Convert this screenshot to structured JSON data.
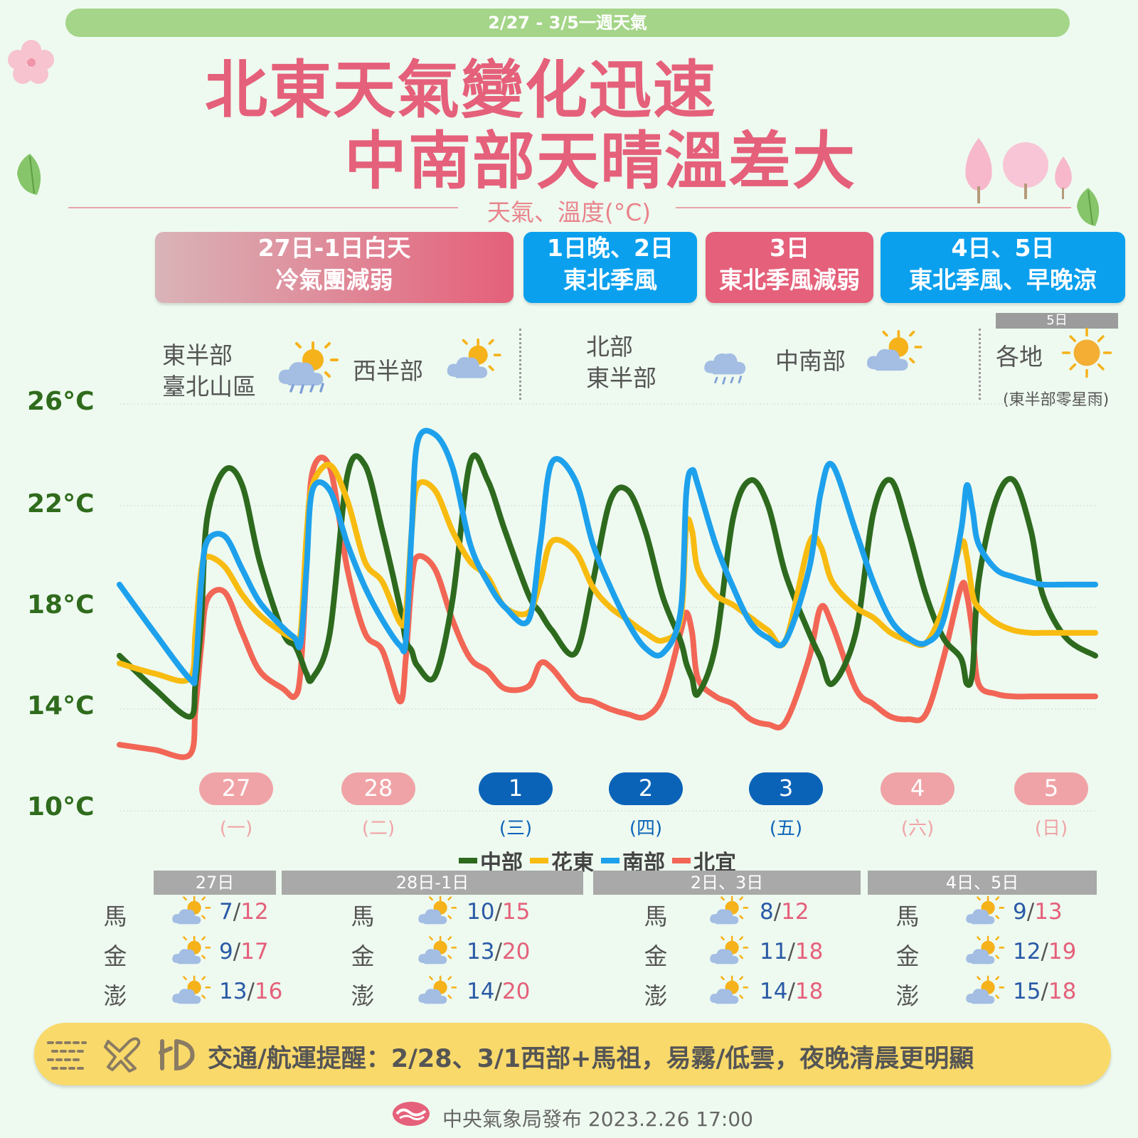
{
  "header": {
    "period_banner": "2/27 - 3/5一週天氣",
    "title_line1": "北東天氣變化迅速",
    "title_line2": "中南部天晴溫差大",
    "subtitle": "天氣、溫度(°C)"
  },
  "periods": [
    {
      "line1": "27日-1日白天",
      "line2": "冷氣團減弱"
    },
    {
      "line1": "1日晚、2日",
      "line2": "東北季風"
    },
    {
      "line1": "3日",
      "line2": "東北季風減弱"
    },
    {
      "line1": "4日、5日",
      "line2": "東北季風、早晚涼"
    }
  ],
  "weather_notes": {
    "g1_region_a_line1": "東半部",
    "g1_region_a_line2": "臺北山區",
    "g1_region_b": "西半部",
    "g2_region_a_line1": "北部",
    "g2_region_a_line2": "東半部",
    "g2_region_b": "中南部",
    "g3_tag": "5日",
    "g3_region": "各地",
    "g3_note": "(東半部零星雨)"
  },
  "icons": [
    "rain-partly-sunny-icon",
    "partly-sunny-icon",
    "rain-cloud-icon",
    "sun-icon"
  ],
  "colors": {
    "central": "#2d6a1e",
    "huadong": "#f8bb10",
    "south": "#1ea1ec",
    "north_yilan": "#f26656",
    "accent_pink": "#e5607a",
    "accent_blue": "#0aa0ee",
    "day_pill_pink": "#f0a3a6",
    "day_pill_blue": "#0b63b8"
  },
  "chart_data": {
    "type": "line",
    "y_unit": "°C",
    "ylim": [
      10,
      26
    ],
    "yticks": [
      "26°C",
      "22°C",
      "18°C",
      "14°C",
      "10°C"
    ],
    "ytick_values": [
      26,
      22,
      18,
      14,
      10
    ],
    "days": [
      {
        "date": "27",
        "dow": "(一)",
        "style": "pink"
      },
      {
        "date": "28",
        "dow": "(二)",
        "style": "pink"
      },
      {
        "date": "1",
        "dow": "(三)",
        "style": "blue"
      },
      {
        "date": "2",
        "dow": "(四)",
        "style": "blue"
      },
      {
        "date": "3",
        "dow": "(五)",
        "style": "blue"
      },
      {
        "date": "4",
        "dow": "(六)",
        "style": "pink"
      },
      {
        "date": "5",
        "dow": "(日)",
        "style": "pink"
      }
    ],
    "x_hours": [
      0,
      6,
      12,
      13,
      14,
      15,
      18,
      21,
      24,
      28,
      30,
      31,
      32,
      33,
      36,
      39,
      42,
      45,
      48,
      49,
      50,
      51,
      54,
      57,
      60,
      63,
      66,
      70,
      72,
      74,
      78,
      81,
      84,
      87,
      90,
      93,
      96,
      97,
      98,
      99,
      102,
      105,
      108,
      111,
      114,
      118,
      120,
      122,
      126,
      129,
      132,
      135,
      138,
      141,
      144,
      145,
      146,
      147,
      150,
      153,
      156,
      158,
      162,
      167
    ],
    "series": [
      {
        "name": "中部",
        "key": "central",
        "values": [
          16.1,
          14.8,
          13.7,
          15.0,
          17.5,
          21.5,
          23.4,
          22.8,
          19.8,
          17.0,
          16.5,
          16.0,
          15.4,
          15.2,
          17.0,
          23.2,
          23.6,
          21.0,
          18.0,
          16.7,
          16.3,
          15.7,
          15.3,
          18.3,
          23.7,
          23.0,
          21.0,
          18.5,
          17.8,
          17.1,
          16.2,
          19.0,
          22.2,
          22.6,
          21.0,
          18.4,
          16.7,
          15.8,
          15.2,
          14.6,
          16.5,
          21.5,
          23.0,
          22.0,
          19.3,
          17.0,
          16.0,
          15.0,
          17.0,
          21.7,
          23.0,
          21.0,
          18.5,
          16.8,
          16.0,
          15.0,
          15.5,
          19.0,
          22.2,
          23.0,
          21.0,
          18.5,
          16.8,
          16.1
        ]
      },
      {
        "name": "花東",
        "key": "huadong",
        "values": [
          15.8,
          15.4,
          15.2,
          17.0,
          19.5,
          20.0,
          19.6,
          18.5,
          17.7,
          17.0,
          16.8,
          17.0,
          20.8,
          22.8,
          23.6,
          22.2,
          19.8,
          19.0,
          17.4,
          17.8,
          21.0,
          22.8,
          22.6,
          21.0,
          19.8,
          19.2,
          18.0,
          17.8,
          19.0,
          20.6,
          20.2,
          18.8,
          18.0,
          17.5,
          17.0,
          16.7,
          17.5,
          21.2,
          21.0,
          19.5,
          18.5,
          18.1,
          17.6,
          17.1,
          16.7,
          20.5,
          20.4,
          19.0,
          18.0,
          17.6,
          17.0,
          16.7,
          16.6,
          18.0,
          20.5,
          20.0,
          18.5,
          18.0,
          17.4,
          17.1,
          17.0,
          17.0,
          17.0,
          17.0
        ]
      },
      {
        "name": "南部",
        "key": "south",
        "values": [
          18.9,
          17.0,
          15.2,
          15.5,
          19.0,
          20.6,
          20.8,
          19.5,
          18.2,
          17.2,
          16.8,
          16.6,
          19.5,
          22.6,
          22.6,
          20.5,
          18.8,
          17.5,
          16.5,
          16.7,
          21.0,
          24.5,
          24.8,
          23.5,
          20.5,
          19.0,
          18.0,
          17.5,
          20.5,
          23.7,
          23.0,
          20.5,
          18.8,
          17.4,
          16.4,
          16.2,
          17.8,
          22.5,
          23.4,
          22.8,
          20.5,
          18.8,
          17.4,
          16.8,
          16.7,
          19.5,
          22.5,
          23.6,
          21.0,
          19.0,
          17.5,
          16.8,
          16.6,
          17.5,
          21.0,
          22.8,
          21.8,
          20.5,
          19.5,
          19.2,
          19.0,
          18.9,
          18.9,
          18.9
        ]
      },
      {
        "name": "北宜",
        "key": "north_yilan",
        "values": [
          12.6,
          12.4,
          12.2,
          14.0,
          16.5,
          18.3,
          18.6,
          17.0,
          15.5,
          14.8,
          14.5,
          15.5,
          19.5,
          23.3,
          23.5,
          19.5,
          17.0,
          16.3,
          14.3,
          16.0,
          19.0,
          20.0,
          19.5,
          17.5,
          16.0,
          15.5,
          14.8,
          14.9,
          15.8,
          15.6,
          14.5,
          14.3,
          14.0,
          13.8,
          13.7,
          14.5,
          17.0,
          17.8,
          17.0,
          15.2,
          14.5,
          14.2,
          13.6,
          13.4,
          13.5,
          16.0,
          18.0,
          17.3,
          14.8,
          14.2,
          13.7,
          13.6,
          13.8,
          16.0,
          18.8,
          18.5,
          17.0,
          15.0,
          14.6,
          14.5,
          14.5,
          14.5,
          14.5,
          14.5
        ]
      }
    ]
  },
  "legend": {
    "central": "中部",
    "huadong": "花東",
    "south": "南部",
    "north_yilan": "北宜"
  },
  "islands": {
    "names": [
      "馬",
      "金",
      "澎"
    ],
    "groups": [
      {
        "label": "27日",
        "temps": [
          {
            "lo": "7",
            "hi": "12"
          },
          {
            "lo": "9",
            "hi": "17"
          },
          {
            "lo": "13",
            "hi": "16"
          }
        ]
      },
      {
        "label": "28日-1日",
        "temps": [
          {
            "lo": "10",
            "hi": "15"
          },
          {
            "lo": "13",
            "hi": "20"
          },
          {
            "lo": "14",
            "hi": "20"
          }
        ]
      },
      {
        "label": "2日、3日",
        "temps": [
          {
            "lo": "8",
            "hi": "12"
          },
          {
            "lo": "11",
            "hi": "18"
          },
          {
            "lo": "14",
            "hi": "18"
          }
        ]
      },
      {
        "label": "4日、5日",
        "temps": [
          {
            "lo": "9",
            "hi": "13"
          },
          {
            "lo": "12",
            "hi": "19"
          },
          {
            "lo": "15",
            "hi": "18"
          }
        ]
      }
    ]
  },
  "notice": {
    "text": "交通/航運提醒：2/28、3/1西部+馬祖，易霧/低雲，夜晚清晨更明顯"
  },
  "footer": {
    "text": "中央氣象局發布 2023.2.26  17:00"
  }
}
